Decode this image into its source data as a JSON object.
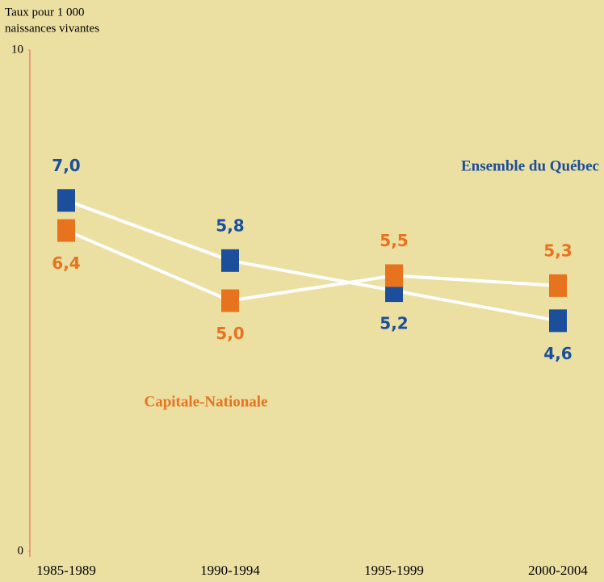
{
  "chart_data": {
    "type": "line",
    "ylabel": [
      "Taux pour 1 000",
      "naissances vivantes"
    ],
    "categories": [
      "1985-1989",
      "1990-1994",
      "1995-1999",
      "2000-2004"
    ],
    "series": [
      {
        "name": "Ensemble du Québec",
        "color": "#1b4f9c",
        "values": [
          7.0,
          5.8,
          5.2,
          4.6
        ],
        "value_labels": [
          "7,0",
          "5,8",
          "5,2",
          "4,6"
        ]
      },
      {
        "name": "Capitale-Nationale",
        "color": "#e8731f",
        "values": [
          6.4,
          5.0,
          5.5,
          5.3
        ],
        "value_labels": [
          "6,4",
          "5,0",
          "5,5",
          "5,3"
        ]
      }
    ],
    "ylim": [
      0,
      10
    ],
    "yticks": [
      0,
      10
    ],
    "line_color": "#ffffff"
  }
}
